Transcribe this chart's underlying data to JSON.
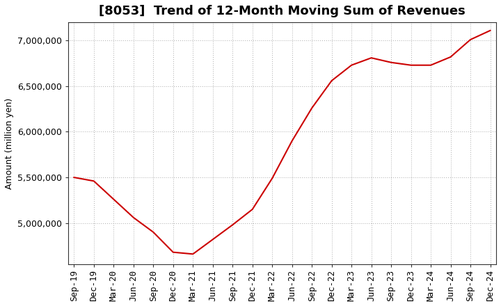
{
  "title": "[8053]  Trend of 12-Month Moving Sum of Revenues",
  "ylabel": "Amount (million yen)",
  "line_color": "#cc0000",
  "background_color": "#ffffff",
  "plot_bg_color": "#ffffff",
  "grid_color": "#aaaaaa",
  "x_labels": [
    "Sep-19",
    "Dec-19",
    "Mar-20",
    "Jun-20",
    "Sep-20",
    "Dec-20",
    "Mar-21",
    "Jun-21",
    "Sep-21",
    "Dec-21",
    "Mar-22",
    "Jun-22",
    "Sep-22",
    "Dec-22",
    "Mar-23",
    "Jun-23",
    "Sep-23",
    "Dec-23",
    "Mar-24",
    "Jun-24",
    "Sep-24",
    "Dec-24"
  ],
  "y_values": [
    5500000,
    5460000,
    5260000,
    5060000,
    4900000,
    4680000,
    4660000,
    4820000,
    4980000,
    5150000,
    5490000,
    5900000,
    6260000,
    6560000,
    6730000,
    6810000,
    6760000,
    6730000,
    6730000,
    6820000,
    7010000,
    7110000
  ],
  "ylim_min": 4550000,
  "ylim_max": 7200000,
  "ytick_values": [
    5000000,
    5500000,
    6000000,
    6500000,
    7000000
  ],
  "title_fontsize": 13,
  "axis_fontsize": 9,
  "tick_fontsize": 9
}
